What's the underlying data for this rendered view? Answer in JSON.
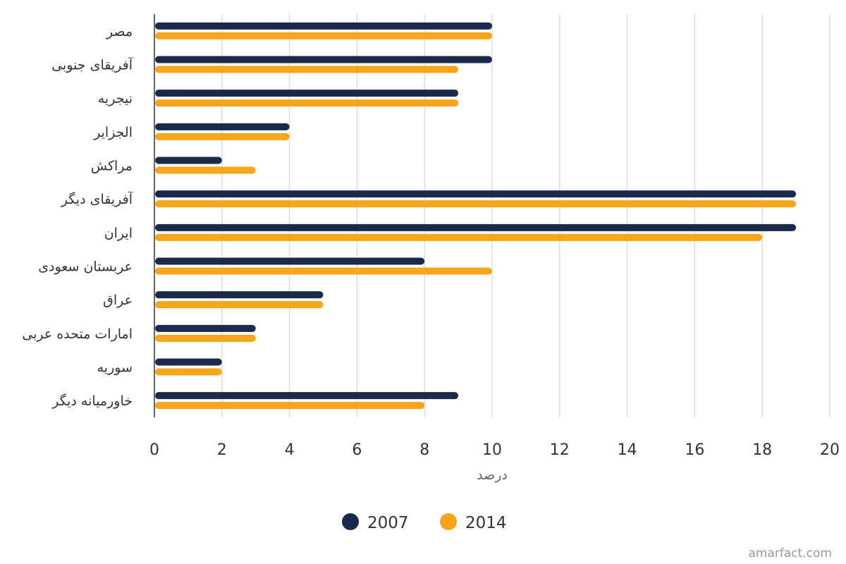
{
  "chart_data": {
    "type": "bar",
    "orientation": "horizontal",
    "categories": [
      "مصر",
      "آفریقای جنوبی",
      "نیجریه",
      "الجزایر",
      "مراکش",
      "آفریقای دیگر",
      "ایران",
      "عربستان سعودی",
      "عراق",
      "امارات متحده عربی",
      "سوریه",
      "خاورمیانه دیگر"
    ],
    "series": [
      {
        "name": "2007",
        "color": "#1b2a4a",
        "values": [
          10,
          10,
          9,
          4,
          2,
          19,
          19,
          8,
          5,
          3,
          2,
          9
        ]
      },
      {
        "name": "2014",
        "color": "#f8a51b",
        "values": [
          10,
          9,
          9,
          4,
          3,
          19,
          18,
          10,
          5,
          3,
          2,
          8
        ]
      }
    ],
    "xlabel": "درصد",
    "ylabel": "",
    "title": "",
    "xlim": [
      0,
      20
    ],
    "xticks": [
      "0",
      "2",
      "4",
      "6",
      "8",
      "10",
      "12",
      "14",
      "16",
      "18",
      "20"
    ],
    "grid": "vertical",
    "legend_position": "bottom-center"
  },
  "credit": "amarfact.com"
}
